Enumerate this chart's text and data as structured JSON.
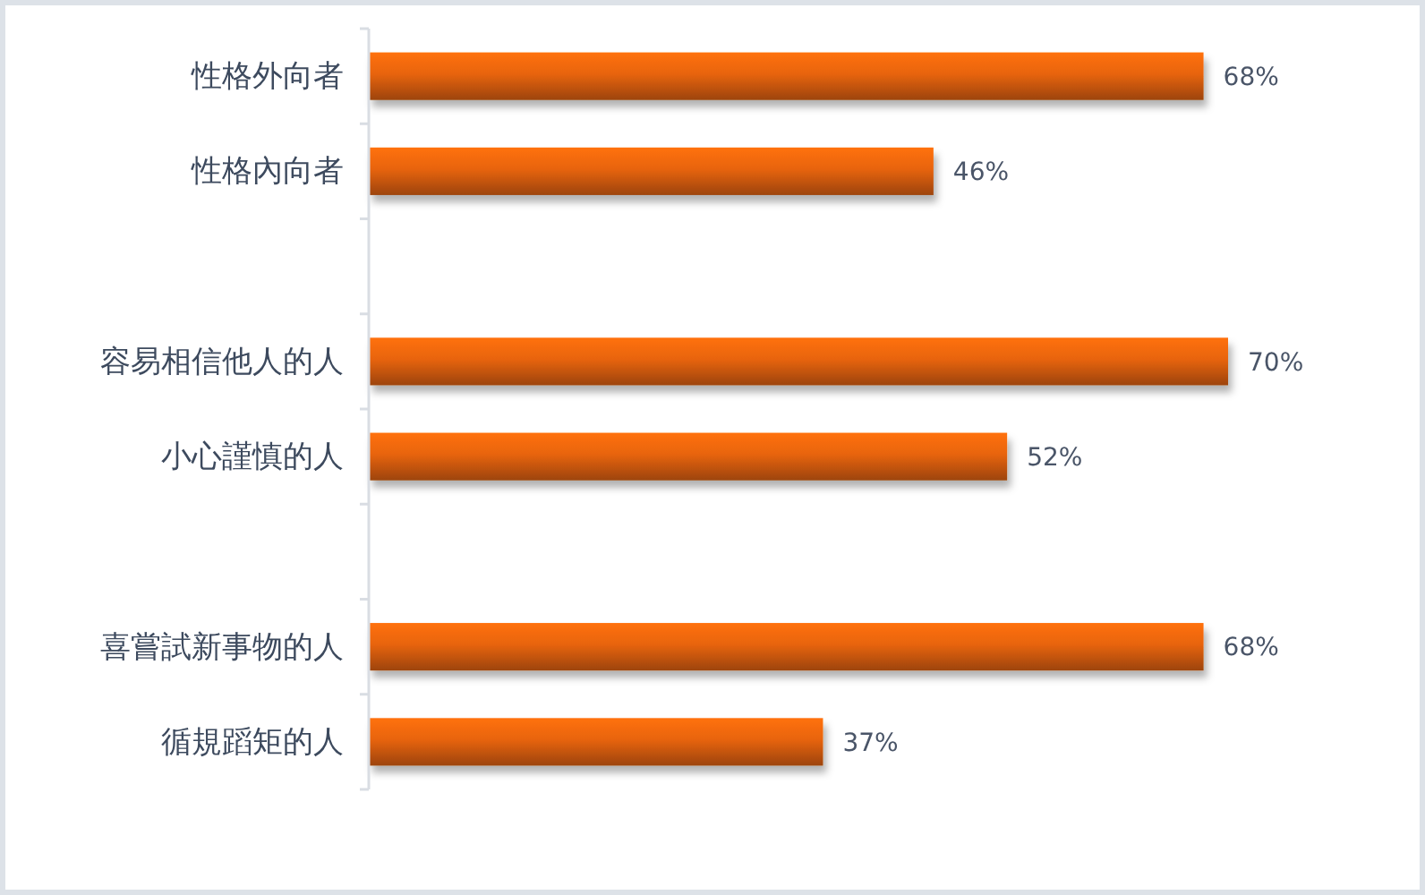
{
  "chart_data": {
    "type": "bar",
    "orientation": "horizontal",
    "categories": [
      "性格外向者",
      "性格內向者",
      null,
      "容易相信他人的人",
      "小心謹慎的人",
      null,
      "喜嘗試新事物的人",
      "循規蹈矩的人"
    ],
    "values": [
      68,
      46,
      null,
      70,
      52,
      null,
      68,
      37
    ],
    "value_labels": [
      "68%",
      "46%",
      null,
      "70%",
      "52%",
      null,
      "68%",
      "37%"
    ],
    "color": "#e8640c",
    "grid": false,
    "legend": false
  }
}
